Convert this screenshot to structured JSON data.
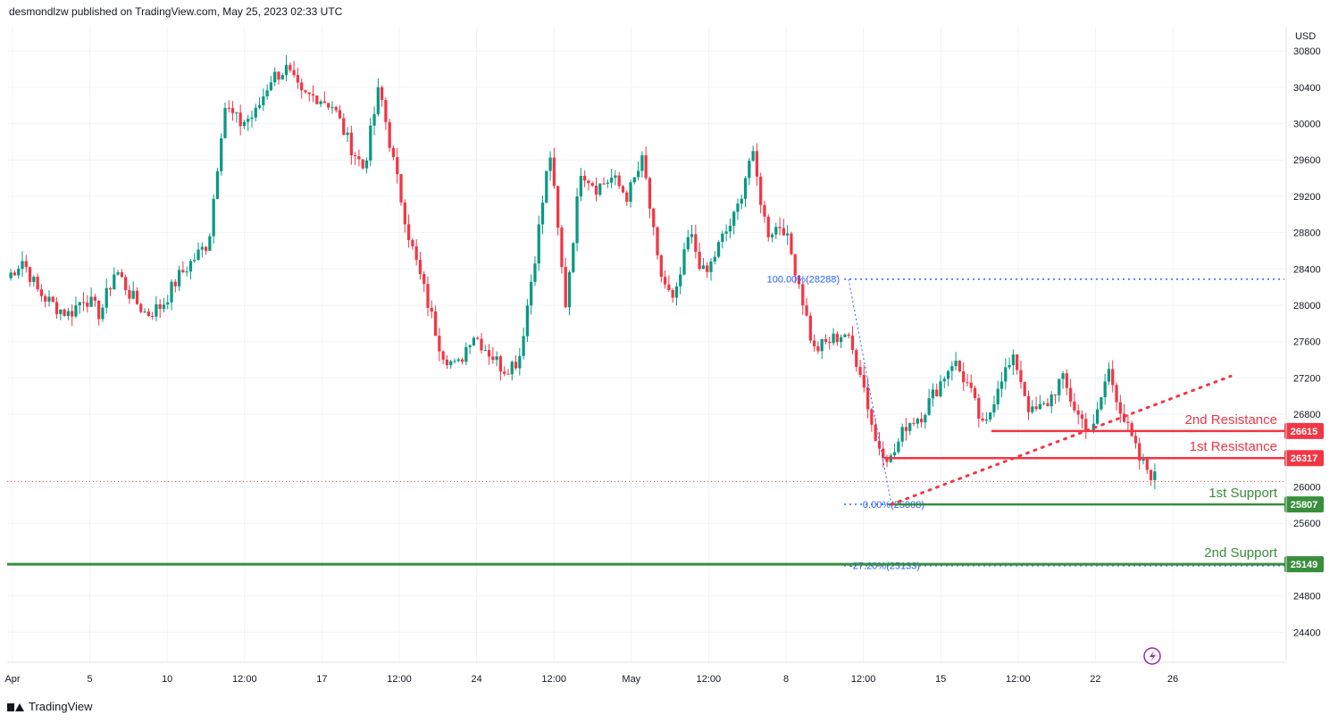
{
  "header": {
    "text": "desmondlzw published on TradingView.com, May 25, 2023 02:33 UTC"
  },
  "footer": {
    "brand": "TradingView"
  },
  "colors": {
    "up": "#089981",
    "down": "#f23645",
    "support": "#388e3c",
    "resistance": "#f23645",
    "fib": "#2962ff"
  },
  "chart_data": {
    "type": "candlestick",
    "y_axis_label": "USD",
    "y_range": [
      24150,
      30850
    ],
    "y_ticks": [
      24400,
      24800,
      25600,
      26000,
      26800,
      27200,
      27600,
      28000,
      28400,
      28800,
      29200,
      29600,
      30000,
      30400,
      30800
    ],
    "x_ticks": [
      "Apr",
      "5",
      "10",
      "12:00",
      "17",
      "12:00",
      "24",
      "12:00",
      "May",
      "12:00",
      "8",
      "12:00",
      "15",
      "12:00",
      "22",
      "26"
    ],
    "current_price": 26060,
    "levels": [
      {
        "name": "2nd Resistance",
        "value": 26615,
        "label": "26615",
        "kind": "resistance"
      },
      {
        "name": "1st Resistance",
        "value": 26317,
        "label": "26317",
        "kind": "resistance"
      },
      {
        "name": "1st Support",
        "value": 25807,
        "label": "25807",
        "kind": "support"
      },
      {
        "name": "2nd Support",
        "value": 25149,
        "label": "25149",
        "kind": "support"
      }
    ],
    "fibonacci": [
      {
        "label": "100.00%(28288)",
        "value": 28288
      },
      {
        "label": "0.00%(25808)",
        "value": 25808
      },
      {
        "label": "-27.20%(25133)",
        "value": 25133
      }
    ],
    "trendline": {
      "from": 25807,
      "to": 27220
    },
    "anchors": [
      28300,
      28500,
      28150,
      28000,
      27900,
      28100,
      27900,
      28400,
      28100,
      27900,
      28000,
      28300,
      28500,
      28700,
      30200,
      30000,
      30100,
      30500,
      30600,
      30300,
      30300,
      30200,
      29800,
      29500,
      30400,
      29500,
      28700,
      28100,
      27500,
      27300,
      27700,
      27500,
      27300,
      27400,
      28500,
      29700,
      28000,
      29500,
      29300,
      29400,
      29200,
      29600,
      28400,
      28000,
      28800,
      28300,
      28700,
      29000,
      29700,
      28800,
      28900,
      28300,
      27500,
      27600,
      27700,
      27300,
      26500,
      26300,
      26700,
      26800,
      27100,
      27400,
      27100,
      26600,
      27200,
      27400,
      26800,
      26900,
      27200,
      26800,
      26600,
      27300,
      26750,
      26300,
      26100
    ]
  }
}
